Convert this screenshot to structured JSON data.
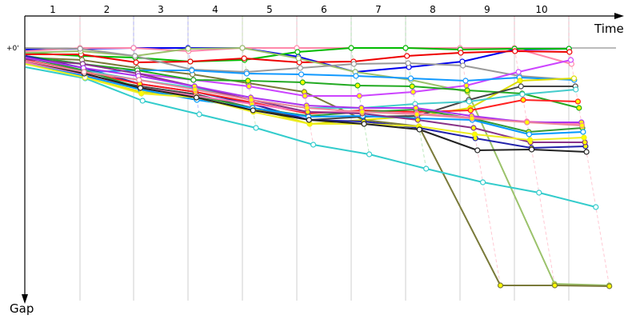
{
  "chart_data": {
    "type": "line",
    "xlabel": "Time",
    "ylabel": "Gap",
    "zero_label": "+0'",
    "lap_labels": [
      "1",
      "2",
      "3",
      "4",
      "5",
      "6",
      "7",
      "8",
      "9",
      "10"
    ],
    "x": [
      0,
      1,
      2,
      3,
      4,
      5,
      6,
      7,
      8,
      9,
      10
    ],
    "grid": true,
    "series": [
      {
        "color": "#0000ee",
        "values": [
          2,
          1,
          0,
          0,
          0,
          11,
          30,
          24,
          17,
          2,
          1
        ]
      },
      {
        "color": "#ff88aa",
        "values": [
          4,
          0,
          0,
          4,
          0,
          0,
          0,
          0,
          0,
          0,
          20
        ]
      },
      {
        "color": "#00bb00",
        "values": [
          6,
          10,
          12,
          17,
          15,
          5,
          0,
          0,
          2,
          1,
          1
        ]
      },
      {
        "color": "#ee0000",
        "values": [
          8,
          8,
          18,
          17,
          13,
          18,
          17,
          10,
          6,
          4,
          5
        ]
      },
      {
        "color": "#9bc26b",
        "values": [
          6,
          4,
          10,
          1,
          0,
          13,
          30,
          40,
          55,
          295,
          297
        ]
      },
      {
        "color": "#7a7a3a",
        "values": [
          12,
          15,
          25,
          33,
          44,
          55,
          90,
          98,
          297,
          297,
          298
        ]
      },
      {
        "color": "#33cccc",
        "values": [
          24,
          38,
          66,
          83,
          100,
          121,
          133,
          151,
          168,
          181,
          199
        ]
      },
      {
        "color": "#999999",
        "values": [
          0,
          1,
          10,
          27,
          30,
          25,
          20,
          19,
          22,
          35,
          40
        ]
      },
      {
        "color": "#cc44ff",
        "values": [
          10,
          20,
          32,
          40,
          48,
          60,
          60,
          55,
          47,
          30,
          15
        ]
      },
      {
        "color": "#1199ff",
        "values": [
          15,
          30,
          28,
          28,
          32,
          33,
          35,
          38,
          41,
          37,
          40
        ]
      },
      {
        "color": "#22aa22",
        "values": [
          10,
          20,
          28,
          40,
          41,
          43,
          47,
          48,
          53,
          57,
          75
        ]
      },
      {
        "color": "#dddd00",
        "values": [
          18,
          37,
          55,
          60,
          75,
          95,
          90,
          85,
          75,
          41,
          38
        ]
      },
      {
        "color": "#444444",
        "values": [
          15,
          35,
          48,
          58,
          75,
          90,
          86,
          85,
          65,
          48,
          48
        ]
      },
      {
        "color": "#2222aa",
        "values": [
          10,
          25,
          45,
          55,
          70,
          90,
          92,
          100,
          113,
          125,
          123
        ]
      },
      {
        "color": "#ff2222",
        "values": [
          15,
          30,
          45,
          55,
          68,
          82,
          78,
          80,
          78,
          65,
          67
        ]
      },
      {
        "color": "#44cccc",
        "values": [
          12,
          28,
          40,
          50,
          65,
          75,
          75,
          70,
          67,
          58,
          52
        ]
      },
      {
        "color": "#339933",
        "values": [
          12,
          28,
          50,
          60,
          75,
          85,
          80,
          77,
          88,
          105,
          100
        ]
      },
      {
        "color": "#ff77bb",
        "values": [
          18,
          33,
          50,
          60,
          70,
          80,
          80,
          82,
          87,
          92,
          95
        ]
      },
      {
        "color": "#0099ff",
        "values": [
          20,
          35,
          52,
          65,
          75,
          86,
          85,
          88,
          90,
          108,
          105
        ]
      },
      {
        "color": "#883388",
        "values": [
          14,
          20,
          32,
          48,
          65,
          80,
          82,
          90,
          100,
          118,
          118
        ]
      },
      {
        "color": "#eeee22",
        "values": [
          20,
          37,
          57,
          62,
          80,
          95,
          95,
          98,
          108,
          115,
          112
        ]
      },
      {
        "color": "#222222",
        "values": [
          16,
          32,
          50,
          62,
          78,
          90,
          95,
          102,
          128,
          127,
          130
        ]
      },
      {
        "color": "#aa33ee",
        "values": [
          12,
          25,
          35,
          48,
          62,
          72,
          75,
          75,
          85,
          93,
          93
        ]
      },
      {
        "color": "#ee8899",
        "values": [
          16,
          30,
          40,
          52,
          65,
          75,
          80,
          83,
          88,
          93,
          97
        ]
      }
    ]
  }
}
